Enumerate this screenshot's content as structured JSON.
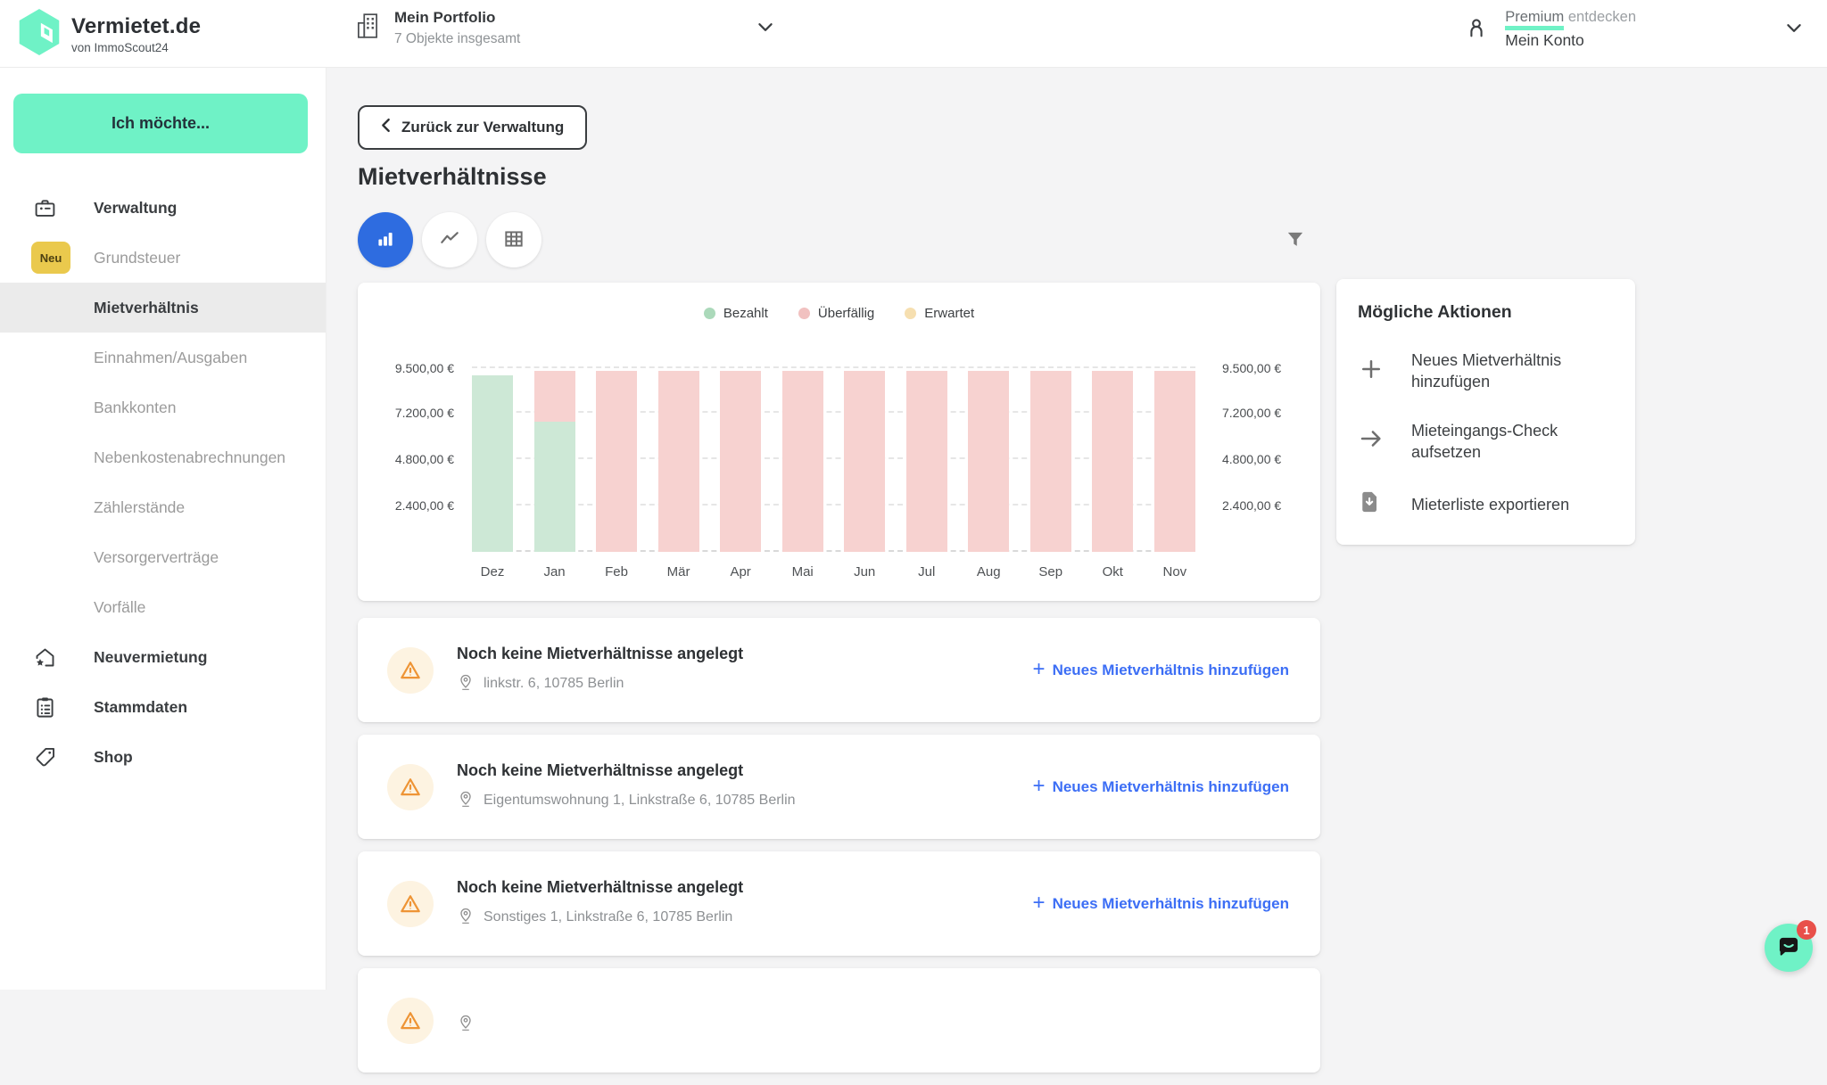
{
  "header": {
    "brand": "Vermietet.de",
    "brand_sub": "von ImmoScout24",
    "portfolio": {
      "title": "Mein Portfolio",
      "subtitle": "7 Objekte insgesamt"
    },
    "account": {
      "premium_highlight": "Premium",
      "premium_rest": " entdecken",
      "name": "Mein Konto"
    }
  },
  "sidebar": {
    "cta": "Ich möchte...",
    "items": [
      {
        "label": "Verwaltung",
        "icon": "toolbox-icon",
        "level": "top"
      },
      {
        "label": "Grundsteuer",
        "badge": "Neu",
        "level": "sub"
      },
      {
        "label": "Mietverhältnis",
        "level": "sub",
        "active": true
      },
      {
        "label": "Einnahmen/Ausgaben",
        "level": "sub"
      },
      {
        "label": "Bankkonten",
        "level": "sub"
      },
      {
        "label": "Nebenkostenabrechnungen",
        "level": "sub"
      },
      {
        "label": "Zählerstände",
        "level": "sub"
      },
      {
        "label": "Versorgerverträge",
        "level": "sub"
      },
      {
        "label": "Vorfälle",
        "level": "sub"
      },
      {
        "label": "Neuvermietung",
        "icon": "house-star-icon",
        "level": "top"
      },
      {
        "label": "Stammdaten",
        "icon": "clipboard-icon",
        "level": "top"
      },
      {
        "label": "Shop",
        "icon": "tag-icon",
        "level": "top"
      }
    ]
  },
  "main": {
    "back_button": "Zurück zur Verwaltung",
    "page_title": "Mietverhältnisse",
    "view_toggles": [
      "bar-chart",
      "line-chart",
      "table"
    ],
    "active_view": "bar-chart"
  },
  "chart_data": {
    "type": "bar",
    "stacked": true,
    "title": "",
    "xlabel": "",
    "ylabel": "",
    "currency": "EUR",
    "grid": "dashed-horizontal",
    "legend_position": "top-center",
    "ylim": [
      0,
      9800
    ],
    "categories": [
      "Dez",
      "Jan",
      "Feb",
      "Mär",
      "Apr",
      "Mai",
      "Jun",
      "Jul",
      "Aug",
      "Sep",
      "Okt",
      "Nov"
    ],
    "series": [
      {
        "name": "Bezahlt",
        "color": "#cde8d6",
        "legend_color": "#abd9ba",
        "values": [
          9150,
          6740,
          0,
          0,
          0,
          0,
          0,
          0,
          0,
          0,
          0,
          0
        ]
      },
      {
        "name": "Überfällig",
        "color": "#f7d2d0",
        "legend_color": "#f1c1c0",
        "values": [
          0,
          2620,
          9360,
          9360,
          9360,
          9360,
          9360,
          9360,
          9360,
          9360,
          9360,
          9360
        ]
      },
      {
        "name": "Erwartet",
        "color": "#f7e4bd",
        "legend_color": "#f6dfb0",
        "values": [
          0,
          0,
          0,
          0,
          0,
          0,
          0,
          0,
          0,
          0,
          0,
          0
        ]
      }
    ],
    "y_ticks": [
      {
        "value": 2400,
        "label": "2.400,00 €"
      },
      {
        "value": 4800,
        "label": "4.800,00 €"
      },
      {
        "value": 7200,
        "label": "7.200,00 €"
      },
      {
        "value": 9500,
        "label": "9.500,00 €"
      }
    ],
    "values_estimated": true
  },
  "actions": {
    "title": "Mögliche Aktionen",
    "items": [
      {
        "icon": "plus-icon",
        "label": "Neues Mietverhältnis hinzufügen"
      },
      {
        "icon": "arrow-right-icon",
        "label": "Mieteingangs-Check aufsetzen"
      },
      {
        "icon": "file-download-icon",
        "label": "Mieterliste exportieren"
      }
    ]
  },
  "properties": {
    "card_title": "Noch keine Mietverhältnisse angelegt",
    "add_link": "Neues Mietverhältnis hinzufügen",
    "cards": [
      {
        "address": "linkstr. 6, 10785 Berlin"
      },
      {
        "address": "Eigentumswohnung 1, Linkstraße 6, 10785 Berlin"
      },
      {
        "address": "Sonstiges 1, Linkstraße 6, 10785 Berlin"
      }
    ],
    "partial_card_visible": true
  },
  "chat": {
    "badge": "1"
  },
  "colors": {
    "accent_mint": "#6ff2c6",
    "toggle_blue": "#2e6ce0",
    "link_blue": "#3c6ef5",
    "warning_orange": "#ee9435",
    "badge_red": "#e8504a",
    "neu_yellow": "#eac94d",
    "sidebar_active_bg": "#ebebeb",
    "content_bg": "#f4f4f5"
  }
}
